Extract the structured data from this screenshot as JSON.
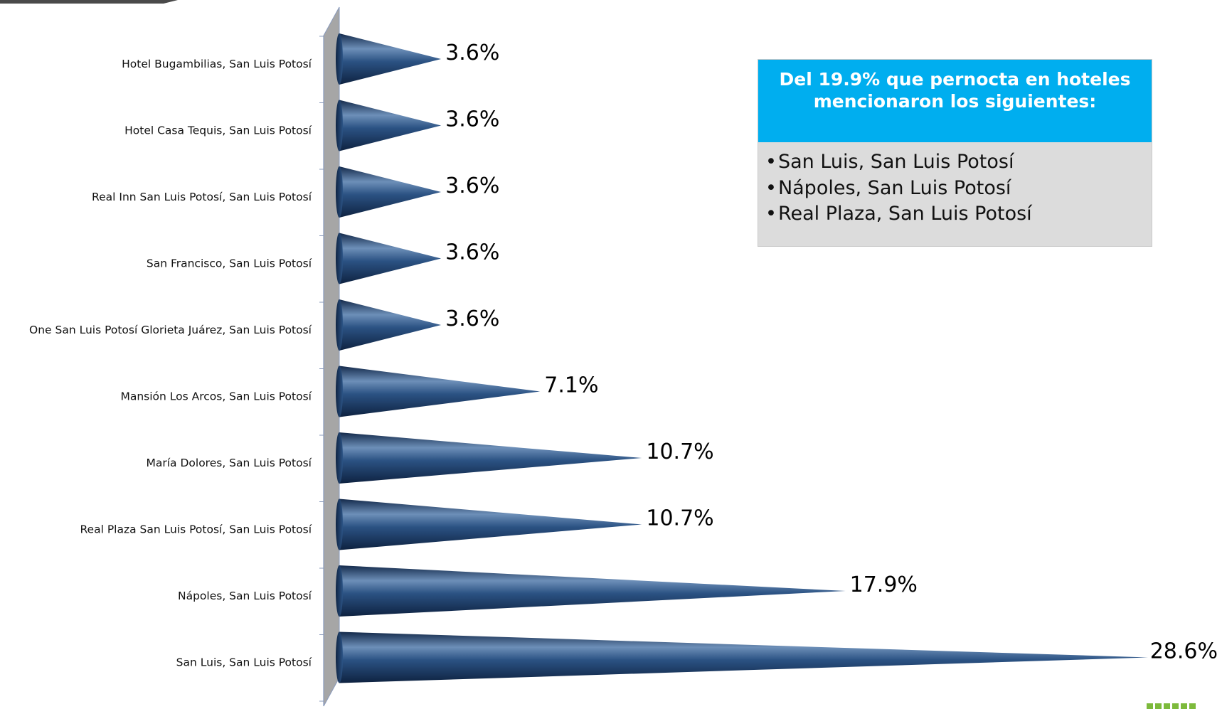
{
  "chart_data": {
    "type": "bar",
    "orientation": "horizontal",
    "bar_shape": "cone",
    "categories": [
      "Hotel Bugambilias, San Luis Potosí",
      "Hotel Casa Tequis, San Luis Potosí",
      "Real Inn San Luis Potosí, San Luis Potosí",
      "San Francisco, San Luis Potosí",
      "One San Luis Potosí Glorieta Juárez, San Luis Potosí",
      "Mansión Los Arcos, San Luis Potosí",
      "María Dolores, San Luis Potosí",
      "Real Plaza San Luis Potosí, San Luis Potosí",
      "Nápoles, San Luis Potosí",
      "San Luis, San Luis Potosí"
    ],
    "values": [
      3.6,
      3.6,
      3.6,
      3.6,
      3.6,
      7.1,
      10.7,
      10.7,
      17.9,
      28.6
    ],
    "value_labels": [
      "3.6%",
      "3.6%",
      "3.6%",
      "3.6%",
      "3.6%",
      "7.1%",
      "10.7%",
      "10.7%",
      "17.9%",
      "28.6%"
    ],
    "xlim": [
      0,
      28.6
    ],
    "grid": false,
    "colors": {
      "bar": "#1f3f66",
      "bar_highlight": "#6d8fb8",
      "wall": "#a6a6a6"
    }
  },
  "info_box": {
    "title": "Del 19.9% que pernocta en hoteles mencionaron los siguientes:",
    "bullet": "•",
    "items": [
      "San Luis, San Luis Potosí",
      "Nápoles, San Luis Potosí",
      "Real Plaza, San Luis Potosí"
    ],
    "colors": {
      "header_bg": "#00aeef",
      "body_bg": "#dcdcdc"
    }
  }
}
